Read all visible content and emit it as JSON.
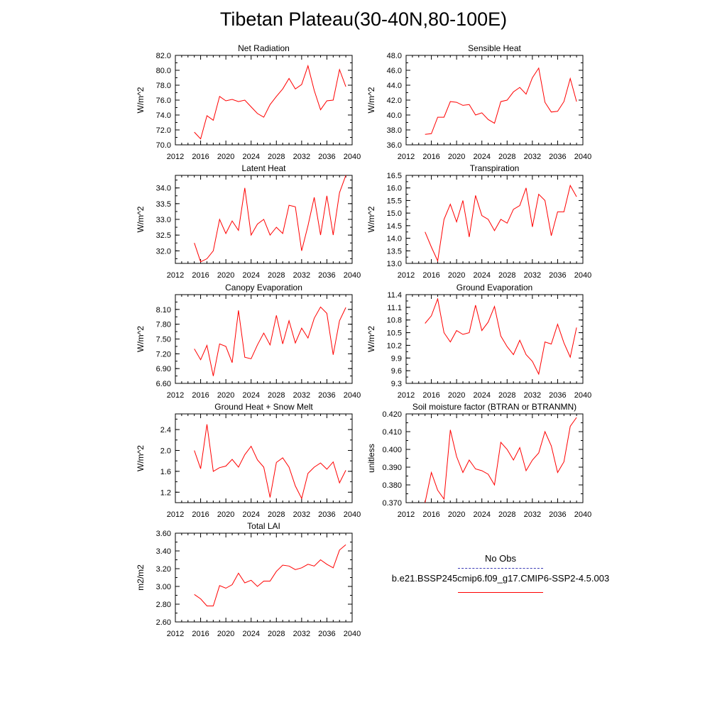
{
  "figure": {
    "title": "Tibetan Plateau(30-40N,80-100E)",
    "legend": {
      "obs_label": "No Obs",
      "obs_color": "#3b3bb5",
      "model_label": "b.e21.BSSP245cmip6.f09_g17.CMIP6-SSP2-4.5.003",
      "model_color": "#ff0000"
    }
  },
  "chart_data": [
    {
      "type": "line",
      "title": "Net Radiation",
      "ylabel": "W/m^2",
      "xlim": [
        2012,
        2040
      ],
      "xticks": [
        "2012",
        "2016",
        "2020",
        "2024",
        "2028",
        "2032",
        "2036",
        "2040"
      ],
      "ylim": [
        70.0,
        82.0
      ],
      "yticks": [
        "70.0",
        "72.0",
        "74.0",
        "76.0",
        "78.0",
        "80.0",
        "82.0"
      ],
      "series": [
        {
          "x": [
            2015,
            2016,
            2017,
            2018,
            2019,
            2020,
            2021,
            2022,
            2023,
            2024,
            2025,
            2026,
            2027,
            2028,
            2029,
            2030,
            2031,
            2032,
            2033,
            2034,
            2035,
            2036,
            2037,
            2038,
            2039
          ],
          "values": [
            71.7,
            70.8,
            73.9,
            73.3,
            76.5,
            75.9,
            76.1,
            75.8,
            76.0,
            75.1,
            74.2,
            73.7,
            75.4,
            76.5,
            77.5,
            78.9,
            77.5,
            78.1,
            80.6,
            77.3,
            74.7,
            75.9,
            76.0,
            80.1,
            77.8
          ]
        }
      ]
    },
    {
      "type": "line",
      "title": "Sensible Heat",
      "ylabel": "W/m^2",
      "xlim": [
        2012,
        2040
      ],
      "xticks": [
        "2012",
        "2016",
        "2020",
        "2024",
        "2028",
        "2032",
        "2036",
        "2040"
      ],
      "ylim": [
        36.0,
        48.0
      ],
      "yticks": [
        "36.0",
        "38.0",
        "40.0",
        "42.0",
        "44.0",
        "46.0",
        "48.0"
      ],
      "series": [
        {
          "x": [
            2015,
            2016,
            2017,
            2018,
            2019,
            2020,
            2021,
            2022,
            2023,
            2024,
            2025,
            2026,
            2027,
            2028,
            2029,
            2030,
            2031,
            2032,
            2033,
            2034,
            2035,
            2036,
            2037,
            2038,
            2039
          ],
          "values": [
            37.4,
            37.5,
            39.7,
            39.7,
            41.8,
            41.7,
            41.3,
            41.4,
            40.0,
            40.3,
            39.4,
            38.9,
            41.8,
            42.0,
            43.1,
            43.7,
            42.8,
            45.0,
            46.3,
            41.7,
            40.4,
            40.5,
            41.8,
            44.9,
            41.8
          ]
        }
      ]
    },
    {
      "type": "line",
      "title": "Latent Heat",
      "ylabel": "W/m^2",
      "xlim": [
        2012,
        2040
      ],
      "xticks": [
        "2012",
        "2016",
        "2020",
        "2024",
        "2028",
        "2032",
        "2036",
        "2040"
      ],
      "ylim": [
        31.6,
        34.4
      ],
      "yticks": [
        "32.0",
        "32.5",
        "33.0",
        "33.5",
        "34.0"
      ],
      "series": [
        {
          "x": [
            2015,
            2016,
            2017,
            2018,
            2019,
            2020,
            2021,
            2022,
            2023,
            2024,
            2025,
            2026,
            2027,
            2028,
            2029,
            2030,
            2031,
            2032,
            2033,
            2034,
            2035,
            2036,
            2037,
            2038,
            2039
          ],
          "values": [
            32.25,
            31.65,
            31.75,
            32.0,
            33.0,
            32.55,
            32.95,
            32.65,
            34.0,
            32.5,
            32.85,
            33.0,
            32.5,
            32.75,
            32.55,
            33.45,
            33.4,
            32.0,
            32.8,
            33.7,
            32.5,
            33.75,
            32.5,
            33.85,
            34.4
          ]
        }
      ]
    },
    {
      "type": "line",
      "title": "Transpiration",
      "ylabel": "W/m^2",
      "xlim": [
        2012,
        2040
      ],
      "xticks": [
        "2012",
        "2016",
        "2020",
        "2024",
        "2028",
        "2032",
        "2036",
        "2040"
      ],
      "ylim": [
        13.0,
        16.5
      ],
      "yticks": [
        "13.0",
        "13.5",
        "14.0",
        "14.5",
        "15.0",
        "15.5",
        "16.0",
        "16.5"
      ],
      "series": [
        {
          "x": [
            2015,
            2016,
            2017,
            2018,
            2019,
            2020,
            2021,
            2022,
            2023,
            2024,
            2025,
            2026,
            2027,
            2028,
            2029,
            2030,
            2031,
            2032,
            2033,
            2034,
            2035,
            2036,
            2037,
            2038,
            2039
          ],
          "values": [
            14.25,
            13.65,
            13.1,
            14.75,
            15.35,
            14.65,
            15.5,
            14.05,
            15.7,
            14.9,
            14.75,
            14.3,
            14.75,
            14.6,
            15.15,
            15.3,
            16.0,
            14.45,
            15.75,
            15.5,
            14.1,
            15.05,
            15.05,
            16.1,
            15.65
          ]
        }
      ]
    },
    {
      "type": "line",
      "title": "Canopy Evaporation",
      "ylabel": "W/m^2",
      "xlim": [
        2012,
        2040
      ],
      "xticks": [
        "2012",
        "2016",
        "2020",
        "2024",
        "2028",
        "2032",
        "2036",
        "2040"
      ],
      "ylim": [
        6.6,
        8.4
      ],
      "yticks": [
        "6.60",
        "6.90",
        "7.20",
        "7.50",
        "7.80",
        "8.10"
      ],
      "series": [
        {
          "x": [
            2015,
            2016,
            2017,
            2018,
            2019,
            2020,
            2021,
            2022,
            2023,
            2024,
            2025,
            2026,
            2027,
            2028,
            2029,
            2030,
            2031,
            2032,
            2033,
            2034,
            2035,
            2036,
            2037,
            2038,
            2039
          ],
          "values": [
            7.3,
            7.08,
            7.37,
            6.75,
            7.4,
            7.35,
            7.02,
            8.08,
            7.13,
            7.1,
            7.38,
            7.62,
            7.38,
            7.98,
            7.4,
            7.87,
            7.42,
            7.72,
            7.52,
            7.92,
            8.15,
            8.02,
            7.18,
            7.87,
            8.14
          ]
        }
      ]
    },
    {
      "type": "line",
      "title": "Ground Evaporation",
      "ylabel": "W/m^2",
      "xlim": [
        2012,
        2040
      ],
      "xticks": [
        "2012",
        "2016",
        "2020",
        "2024",
        "2028",
        "2032",
        "2036",
        "2040"
      ],
      "ylim": [
        9.3,
        11.4
      ],
      "yticks": [
        "9.3",
        "9.6",
        "9.9",
        "10.2",
        "10.5",
        "10.8",
        "11.1",
        "11.4"
      ],
      "series": [
        {
          "x": [
            2015,
            2016,
            2017,
            2018,
            2019,
            2020,
            2021,
            2022,
            2023,
            2024,
            2025,
            2026,
            2027,
            2028,
            2029,
            2030,
            2031,
            2032,
            2033,
            2034,
            2035,
            2036,
            2037,
            2038,
            2039
          ],
          "values": [
            10.72,
            10.9,
            11.3,
            10.5,
            10.28,
            10.55,
            10.46,
            10.5,
            11.15,
            10.55,
            10.75,
            11.12,
            10.42,
            10.17,
            9.98,
            10.32,
            9.98,
            9.82,
            9.52,
            10.28,
            10.23,
            10.7,
            10.26,
            9.92,
            10.62
          ]
        }
      ]
    },
    {
      "type": "line",
      "title": "Ground Heat + Snow Melt",
      "ylabel": "W/m^2",
      "xlim": [
        2012,
        2040
      ],
      "xticks": [
        "2012",
        "2016",
        "2020",
        "2024",
        "2028",
        "2032",
        "2036",
        "2040"
      ],
      "ylim": [
        1.0,
        2.7
      ],
      "yticks": [
        "1.2",
        "1.6",
        "2.0",
        "2.4"
      ],
      "series": [
        {
          "x": [
            2015,
            2016,
            2017,
            2018,
            2019,
            2020,
            2021,
            2022,
            2023,
            2024,
            2025,
            2026,
            2027,
            2028,
            2029,
            2030,
            2031,
            2032,
            2033,
            2034,
            2035,
            2036,
            2037,
            2038,
            2039
          ],
          "values": [
            2.0,
            1.65,
            2.5,
            1.6,
            1.67,
            1.7,
            1.83,
            1.68,
            1.92,
            2.08,
            1.82,
            1.68,
            1.1,
            1.77,
            1.86,
            1.68,
            1.32,
            1.08,
            1.56,
            1.68,
            1.76,
            1.64,
            1.78,
            1.38,
            1.62
          ]
        }
      ]
    },
    {
      "type": "line",
      "title": "Soil moisture factor (BTRAN or BTRANMN)",
      "ylabel": "unitless",
      "xlim": [
        2012,
        2040
      ],
      "xticks": [
        "2012",
        "2016",
        "2020",
        "2024",
        "2028",
        "2032",
        "2036",
        "2040"
      ],
      "ylim": [
        0.37,
        0.42
      ],
      "yticks": [
        "0.370",
        "0.380",
        "0.390",
        "0.400",
        "0.410",
        "0.420"
      ],
      "series": [
        {
          "x": [
            2015,
            2016,
            2017,
            2018,
            2019,
            2020,
            2021,
            2022,
            2023,
            2024,
            2025,
            2026,
            2027,
            2028,
            2029,
            2030,
            2031,
            2032,
            2033,
            2034,
            2035,
            2036,
            2037,
            2038,
            2039
          ],
          "values": [
            0.37,
            0.387,
            0.377,
            0.372,
            0.411,
            0.396,
            0.387,
            0.394,
            0.389,
            0.388,
            0.386,
            0.38,
            0.404,
            0.4,
            0.394,
            0.401,
            0.388,
            0.394,
            0.398,
            0.41,
            0.402,
            0.387,
            0.393,
            0.413,
            0.418
          ]
        }
      ]
    },
    {
      "type": "line",
      "title": "Total LAI",
      "ylabel": "m2/m2",
      "xlim": [
        2012,
        2040
      ],
      "xticks": [
        "2012",
        "2016",
        "2020",
        "2024",
        "2028",
        "2032",
        "2036",
        "2040"
      ],
      "ylim": [
        2.6,
        3.6
      ],
      "yticks": [
        "2.60",
        "2.80",
        "3.00",
        "3.20",
        "3.40",
        "3.60"
      ],
      "series": [
        {
          "x": [
            2015,
            2016,
            2017,
            2018,
            2019,
            2020,
            2021,
            2022,
            2023,
            2024,
            2025,
            2026,
            2027,
            2028,
            2029,
            2030,
            2031,
            2032,
            2033,
            2034,
            2035,
            2036,
            2037,
            2038,
            2039
          ],
          "values": [
            2.91,
            2.86,
            2.78,
            2.78,
            3.01,
            2.98,
            3.02,
            3.15,
            3.04,
            3.07,
            3.0,
            3.06,
            3.06,
            3.17,
            3.24,
            3.23,
            3.19,
            3.21,
            3.25,
            3.23,
            3.3,
            3.25,
            3.21,
            3.41,
            3.47
          ]
        }
      ]
    }
  ]
}
